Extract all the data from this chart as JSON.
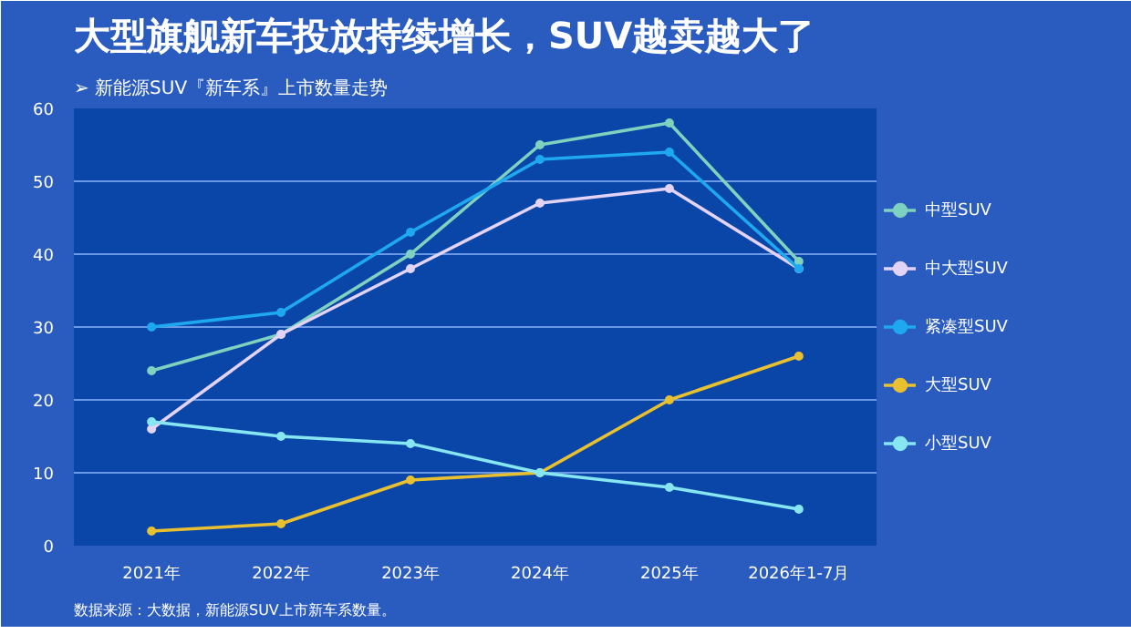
{
  "chart_data": {
    "type": "line",
    "title": "大型旗舰新车投放持续增长，SUV越卖越大了",
    "subtitle": "➢ 新能源SUV『新车系』上市数量走势",
    "annotations": [
      "数据来源：大数据，新能源SUV上市新车系数量。"
    ],
    "categories": [
      "2021年",
      "2022年",
      "2023年",
      "2024年",
      "2025年",
      "2026年1-7月"
    ],
    "ylim": [
      0,
      60
    ],
    "yticks": [
      0,
      10,
      20,
      30,
      40,
      50,
      60
    ],
    "grid": "y",
    "legend": "right",
    "marker": "circle",
    "line_style": "solid",
    "series": [
      {
        "name": "中型SUV",
        "color": "#7fd1c0",
        "values": [
          24,
          29,
          40,
          55,
          58,
          39
        ]
      },
      {
        "name": "中大型SUV",
        "color": "#e3d3f7",
        "values": [
          16,
          29,
          38,
          47,
          49,
          38
        ]
      },
      {
        "name": "紧凑型SUV",
        "color": "#1ea8f0",
        "values": [
          30,
          32,
          43,
          53,
          54,
          38
        ]
      },
      {
        "name": "大型SUV",
        "color": "#e8c030",
        "values": [
          2,
          3,
          9,
          10,
          20,
          26
        ]
      },
      {
        "name": "小型SUV",
        "color": "#86e6f2",
        "values": [
          17,
          15,
          14,
          10,
          8,
          5
        ]
      }
    ]
  }
}
